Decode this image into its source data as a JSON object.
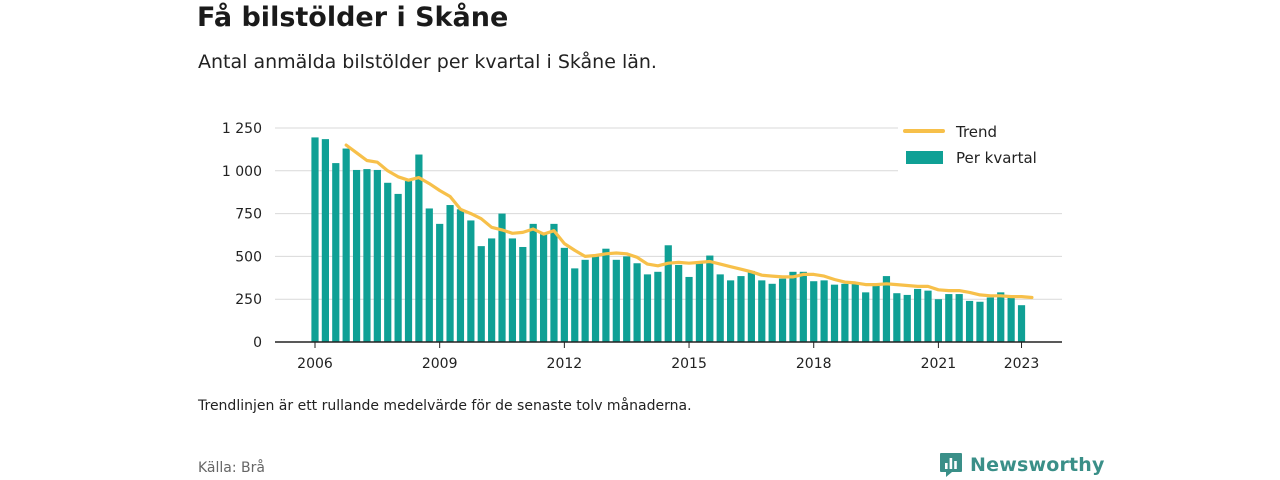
{
  "title": "Få bilstölder i Skåne",
  "subtitle": "Antal anmälda bilstölder per kvartal i Skåne län.",
  "note": "Trendlinjen är ett rullande medelvärde för de senaste tolv månaderna.",
  "source": "Källa: Brå",
  "brand": {
    "name": "Newsworthy",
    "icon": "newsworthy-logo-icon",
    "color": "#3a8f88"
  },
  "colors": {
    "bars": "#0fa095",
    "trend": "#f7c04a",
    "grid": "#d9d9d9",
    "axis": "#222222"
  },
  "chart_data": {
    "type": "bar",
    "ylim": [
      0,
      1250
    ],
    "y_ticks": [
      0,
      250,
      500,
      750,
      1000,
      1250
    ],
    "y_tick_labels": [
      "0",
      "250",
      "500",
      "750",
      "1 000",
      "1 250"
    ],
    "x_ticks": [
      2006,
      2009,
      2012,
      2015,
      2018,
      2021,
      2023
    ],
    "x_tick_labels": [
      "2006",
      "2009",
      "2012",
      "2015",
      "2018",
      "2021",
      "2023"
    ],
    "grid": true,
    "legend_position": "top-right",
    "start_year": 2006,
    "series": [
      {
        "name": "Trend",
        "type": "line",
        "start_index": 3,
        "values": [
          1150,
          1105,
          1060,
          1050,
          1000,
          965,
          945,
          960,
          925,
          885,
          850,
          775,
          750,
          720,
          670,
          655,
          635,
          640,
          660,
          630,
          650,
          575,
          535,
          500,
          505,
          515,
          520,
          515,
          495,
          455,
          445,
          460,
          465,
          460,
          465,
          470,
          455,
          440,
          425,
          410,
          390,
          385,
          380,
          380,
          395,
          395,
          385,
          365,
          350,
          345,
          335,
          335,
          340,
          335,
          330,
          325,
          325,
          305,
          300,
          300,
          290,
          275,
          270,
          270,
          265,
          265,
          260
        ]
      },
      {
        "name": "Per kvartal",
        "type": "bar",
        "values": [
          1195,
          1185,
          1045,
          1130,
          1005,
          1010,
          1005,
          930,
          865,
          940,
          1095,
          780,
          690,
          800,
          775,
          710,
          560,
          605,
          750,
          605,
          555,
          690,
          630,
          690,
          550,
          430,
          480,
          510,
          545,
          480,
          500,
          460,
          395,
          410,
          565,
          450,
          380,
          460,
          505,
          395,
          360,
          385,
          415,
          360,
          340,
          370,
          410,
          410,
          355,
          360,
          335,
          340,
          340,
          290,
          330,
          385,
          285,
          275,
          310,
          300,
          250,
          280,
          280,
          240,
          235,
          260,
          290,
          265,
          215
        ]
      }
    ]
  }
}
